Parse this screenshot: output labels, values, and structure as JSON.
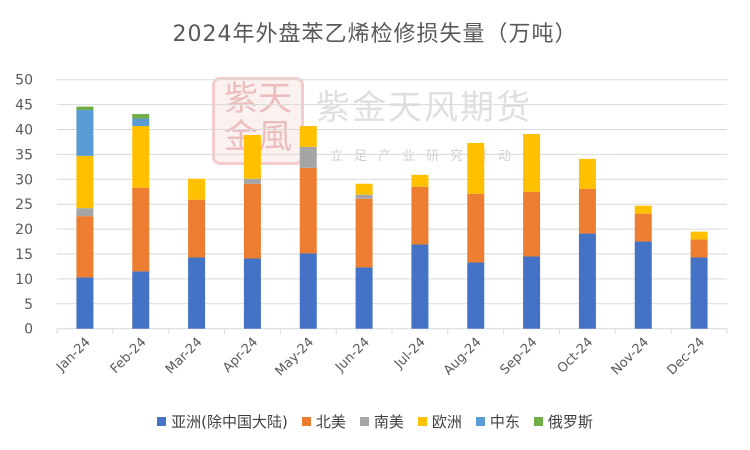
{
  "chart_data": {
    "type": "bar",
    "stacked": true,
    "title": "2024年外盘苯乙烯检修损失量（万吨）",
    "categories": [
      "Jan-24",
      "Feb-24",
      "Mar-24",
      "Apr-24",
      "May-24",
      "Jun-24",
      "Jul-24",
      "Aug-24",
      "Sep-24",
      "Oct-24",
      "Nov-24",
      "Dec-24"
    ],
    "ylim": [
      0,
      50
    ],
    "yticks": [
      0,
      5,
      10,
      15,
      20,
      25,
      30,
      35,
      40,
      45,
      50
    ],
    "grid": true,
    "legend_position": "bottom",
    "series": [
      {
        "name": "亚洲(除中国大陆)",
        "color": "#4472C4",
        "values": [
          10.3,
          11.5,
          14.3,
          14.1,
          15.1,
          12.3,
          16.9,
          13.3,
          14.5,
          19.1,
          17.5,
          14.3
        ]
      },
      {
        "name": "北美",
        "color": "#ED7D31",
        "values": [
          12.3,
          16.8,
          11.6,
          15.0,
          17.2,
          13.8,
          11.6,
          13.8,
          13.0,
          9.0,
          5.6,
          3.6
        ]
      },
      {
        "name": "南美",
        "color": "#A5A5A5",
        "values": [
          1.6,
          0,
          0,
          1.0,
          4.2,
          0.8,
          0,
          0,
          0,
          0,
          0,
          0
        ]
      },
      {
        "name": "欧洲",
        "color": "#FFC000",
        "values": [
          10.5,
          12.4,
          4.2,
          8.8,
          4.2,
          2.2,
          2.4,
          10.2,
          11.6,
          6.0,
          1.6,
          1.6
        ]
      },
      {
        "name": "中东",
        "color": "#5B9BD5",
        "values": [
          9.2,
          1.5,
          0,
          0,
          0,
          0,
          0,
          0,
          0,
          0,
          0,
          0
        ]
      },
      {
        "name": "俄罗斯",
        "color": "#70AD47",
        "values": [
          0.7,
          0.9,
          0,
          0,
          0,
          0,
          0,
          0,
          0,
          0,
          0,
          0
        ]
      }
    ]
  },
  "watermark": {
    "stamp": "紫天金風",
    "brand": "紫金天风期货",
    "slogan": "立足产业研究驱动"
  }
}
